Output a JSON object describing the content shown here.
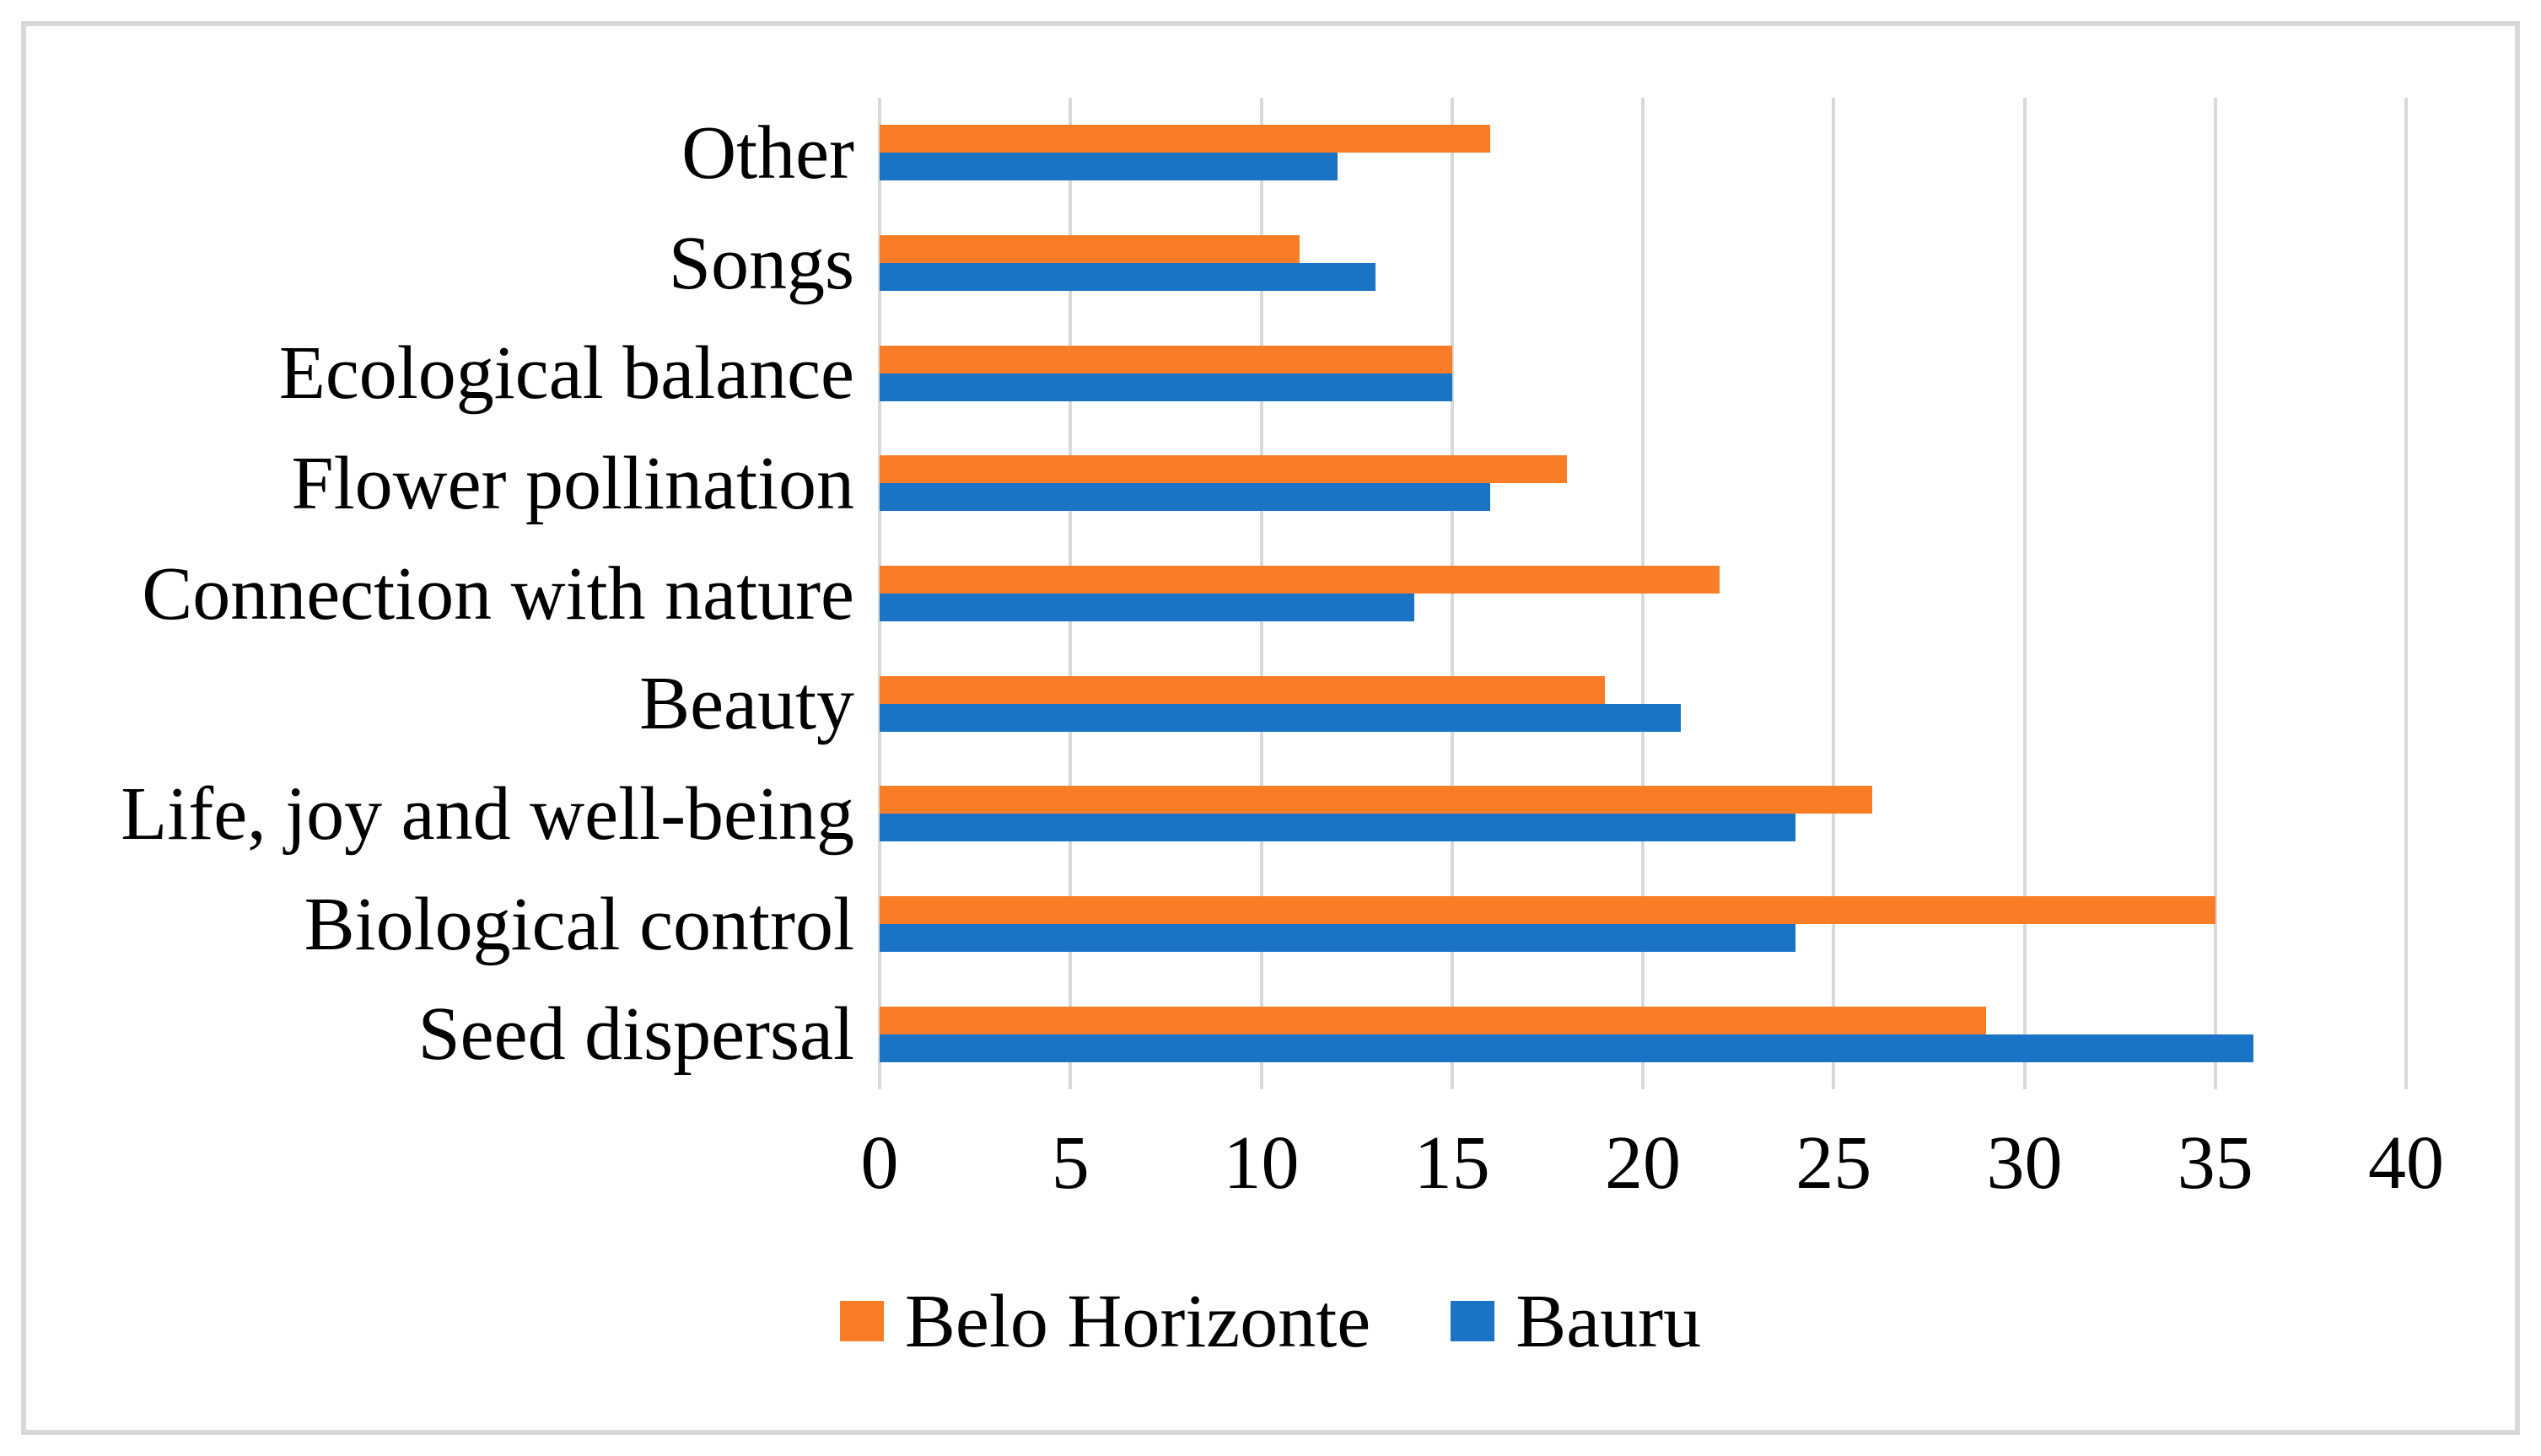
{
  "figure": {
    "background_color": "#FFFFFF",
    "border_color": "#D9D9D9"
  },
  "chart_data": {
    "type": "bar",
    "orientation": "horizontal",
    "title": "",
    "xlabel": "",
    "ylabel": "",
    "categories_top_to_bottom": [
      "Other",
      "Songs",
      "Ecological balance",
      "Flower pollination",
      "Connection with nature",
      "Beauty",
      "Life, joy and well-being",
      "Biological control",
      "Seed dispersal"
    ],
    "series": [
      {
        "name": "Belo Horizonte",
        "color": "#F97D27",
        "values": [
          16,
          11,
          15,
          18,
          22,
          19,
          26,
          35,
          29
        ]
      },
      {
        "name": "Bauru",
        "color": "#1B73C5",
        "values": [
          12,
          13,
          15,
          16,
          14,
          21,
          24,
          24,
          36
        ]
      }
    ],
    "xlim": [
      0,
      40
    ],
    "xticks": [
      0,
      5,
      10,
      15,
      20,
      25,
      30,
      35,
      40
    ],
    "grid": "vertical",
    "gridline_color": "#D9D9D9",
    "legend_position": "bottom-center",
    "legend_labels": [
      "Belo Horizonte",
      "Bauru"
    ]
  }
}
